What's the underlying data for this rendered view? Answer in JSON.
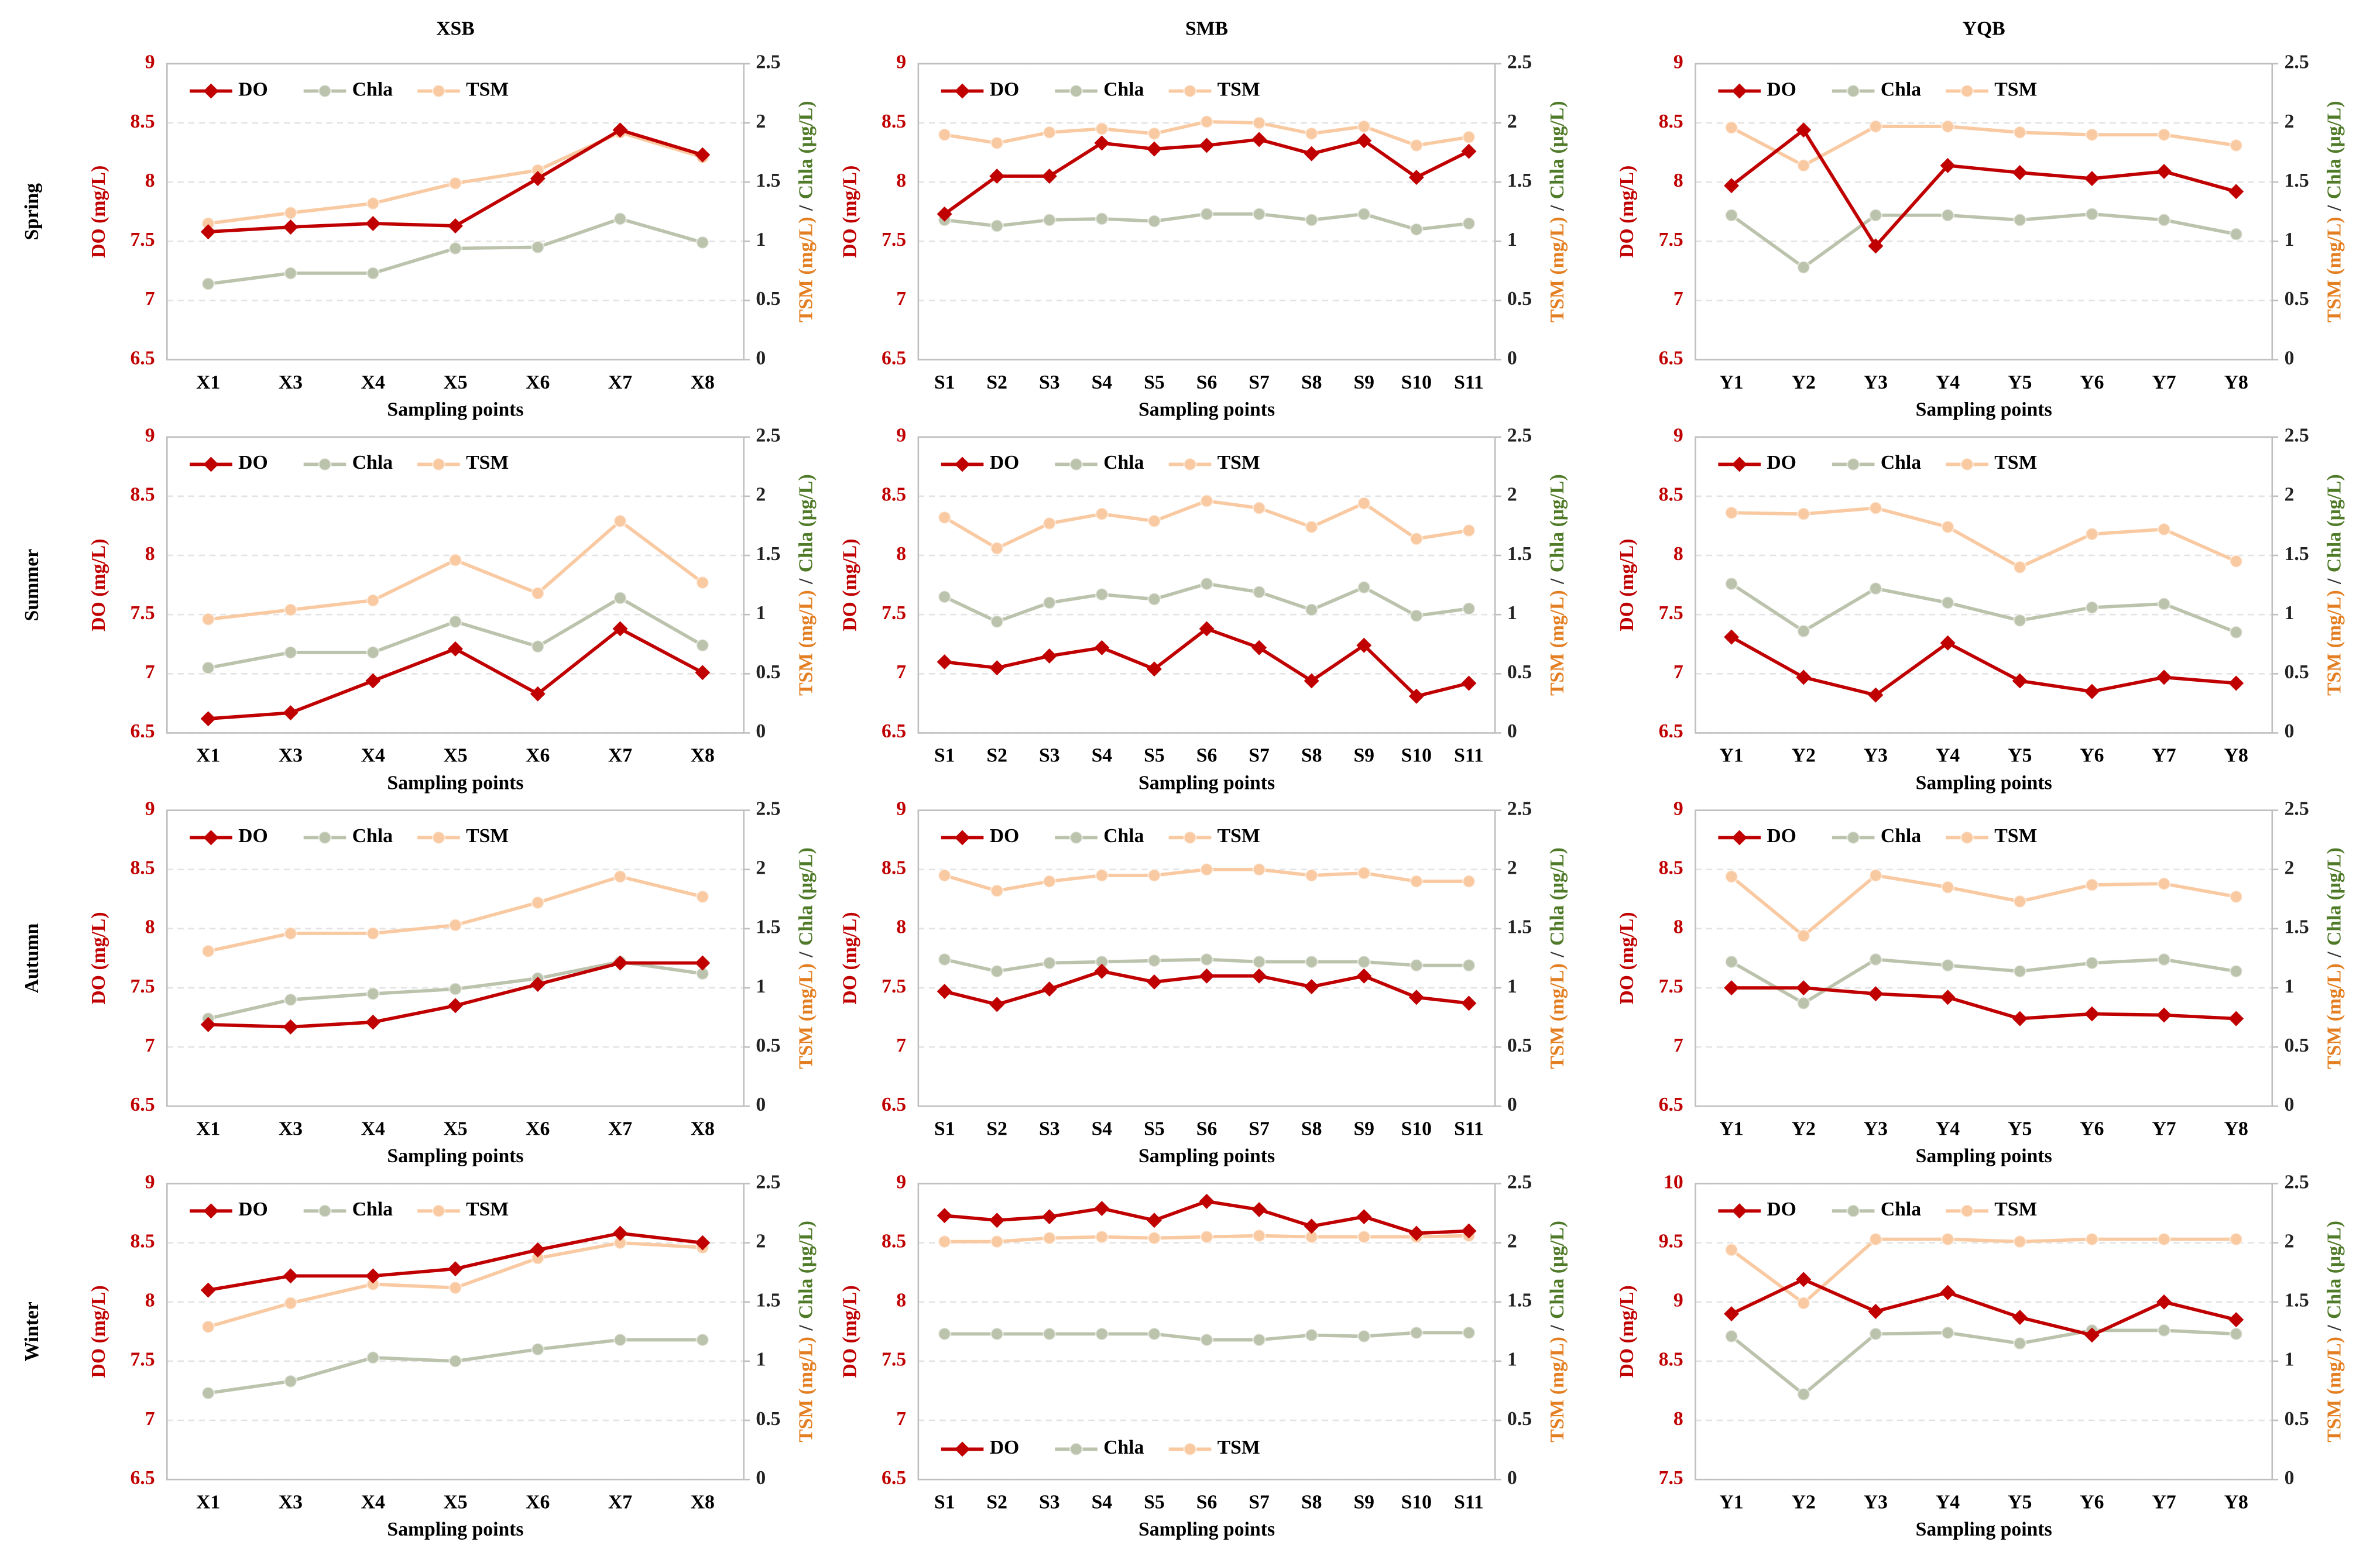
{
  "column_titles": [
    "XSB",
    "SMB",
    "YQB"
  ],
  "row_titles": [
    "Spring",
    "Summer",
    "Autumn",
    "Winter"
  ],
  "chart_data": [
    {
      "type": "line",
      "categories": [
        "X1",
        "X3",
        "X4",
        "X5",
        "X6",
        "X7",
        "X8"
      ],
      "x_label": "Sampling points",
      "y_label": "DO (mg/L)",
      "y2_label": [
        "TSM (mg/L)",
        "/",
        "Chla (μg/L)"
      ],
      "ylim": [
        6.5,
        9
      ],
      "yticks": [
        6.5,
        7,
        7.5,
        8,
        8.5,
        9
      ],
      "y2lim": [
        0,
        2.5
      ],
      "y2ticks": [
        0,
        0.5,
        1,
        1.5,
        2,
        2.5
      ],
      "grid": true,
      "legend": "upper left",
      "series": [
        {
          "name": "DO",
          "color": "#c00000",
          "marker": "diamond",
          "values": [
            7.58,
            7.62,
            7.65,
            7.63,
            8.03,
            8.44,
            8.23
          ]
        },
        {
          "name": "Chla",
          "color": "#bcc3ad",
          "marker": "circle",
          "axis": "y2",
          "values": [
            0.64,
            0.73,
            0.73,
            0.94,
            0.95,
            1.19,
            0.99
          ]
        },
        {
          "name": "TSM",
          "color": "#f9c9a1",
          "marker": "circle",
          "axis": "y2",
          "values": [
            1.15,
            1.24,
            1.32,
            1.49,
            1.6,
            1.92,
            1.71
          ]
        }
      ]
    },
    {
      "type": "line",
      "categories": [
        "S1",
        "S2",
        "S3",
        "S4",
        "S5",
        "S6",
        "S7",
        "S8",
        "S9",
        "S10",
        "S11"
      ],
      "x_label": "Sampling points",
      "y_label": "DO (mg/L)",
      "y2_label": [
        "TSM (mg/L)",
        "/",
        "Chla (μg/L)"
      ],
      "ylim": [
        6.5,
        9
      ],
      "yticks": [
        6.5,
        7,
        7.5,
        8,
        8.5,
        9
      ],
      "y2lim": [
        0,
        2.5
      ],
      "y2ticks": [
        0,
        0.5,
        1,
        1.5,
        2,
        2.5
      ],
      "grid": true,
      "legend": "upper left",
      "series": [
        {
          "name": "DO",
          "color": "#c00000",
          "marker": "diamond",
          "values": [
            7.73,
            8.05,
            8.05,
            8.33,
            8.28,
            8.31,
            8.36,
            8.24,
            8.35,
            8.04,
            8.26
          ]
        },
        {
          "name": "Chla",
          "color": "#bcc3ad",
          "marker": "circle",
          "axis": "y2",
          "values": [
            1.18,
            1.13,
            1.18,
            1.19,
            1.17,
            1.23,
            1.23,
            1.18,
            1.23,
            1.1,
            1.15
          ]
        },
        {
          "name": "TSM",
          "color": "#f9c9a1",
          "marker": "circle",
          "axis": "y2",
          "values": [
            1.9,
            1.83,
            1.92,
            1.95,
            1.91,
            2.01,
            2.0,
            1.91,
            1.97,
            1.81,
            1.88
          ]
        }
      ]
    },
    {
      "type": "line",
      "categories": [
        "Y1",
        "Y2",
        "Y3",
        "Y4",
        "Y5",
        "Y6",
        "Y7",
        "Y8"
      ],
      "x_label": "Sampling points",
      "y_label": "DO (mg/L)",
      "y2_label": [
        "TSM (mg/L)",
        "/",
        "Chla (μg/L)"
      ],
      "ylim": [
        6.5,
        9
      ],
      "yticks": [
        6.5,
        7,
        7.5,
        8,
        8.5,
        9
      ],
      "y2lim": [
        0,
        2.5
      ],
      "y2ticks": [
        0,
        0.5,
        1,
        1.5,
        2,
        2.5
      ],
      "grid": true,
      "legend": "upper left",
      "series": [
        {
          "name": "DO",
          "color": "#c00000",
          "marker": "diamond",
          "values": [
            7.97,
            8.44,
            7.46,
            8.14,
            8.08,
            8.03,
            8.09,
            7.92
          ]
        },
        {
          "name": "Chla",
          "color": "#bcc3ad",
          "marker": "circle",
          "axis": "y2",
          "values": [
            1.22,
            0.78,
            1.22,
            1.22,
            1.18,
            1.23,
            1.18,
            1.06
          ]
        },
        {
          "name": "TSM",
          "color": "#f9c9a1",
          "marker": "circle",
          "axis": "y2",
          "values": [
            1.96,
            1.64,
            1.97,
            1.97,
            1.92,
            1.9,
            1.9,
            1.81
          ]
        }
      ]
    },
    {
      "type": "line",
      "categories": [
        "X1",
        "X3",
        "X4",
        "X5",
        "X6",
        "X7",
        "X8"
      ],
      "x_label": "Sampling points",
      "y_label": "DO (mg/L)",
      "y2_label": [
        "TSM (mg/L)",
        "/",
        "Chla (μg/L)"
      ],
      "ylim": [
        6.5,
        9
      ],
      "yticks": [
        6.5,
        7,
        7.5,
        8,
        8.5,
        9
      ],
      "y2lim": [
        0,
        2.5
      ],
      "y2ticks": [
        0,
        0.5,
        1,
        1.5,
        2,
        2.5
      ],
      "grid": true,
      "legend": "upper left",
      "series": [
        {
          "name": "DO",
          "color": "#c00000",
          "marker": "diamond",
          "values": [
            6.62,
            6.67,
            6.94,
            7.21,
            6.83,
            7.38,
            7.01
          ]
        },
        {
          "name": "Chla",
          "color": "#bcc3ad",
          "marker": "circle",
          "axis": "y2",
          "values": [
            0.55,
            0.68,
            0.68,
            0.94,
            0.73,
            1.14,
            0.74
          ]
        },
        {
          "name": "TSM",
          "color": "#f9c9a1",
          "marker": "circle",
          "axis": "y2",
          "values": [
            0.96,
            1.04,
            1.12,
            1.46,
            1.18,
            1.79,
            1.27
          ]
        }
      ]
    },
    {
      "type": "line",
      "categories": [
        "S1",
        "S2",
        "S3",
        "S4",
        "S5",
        "S6",
        "S7",
        "S8",
        "S9",
        "S10",
        "S11"
      ],
      "x_label": "Sampling points",
      "y_label": "DO (mg/L)",
      "y2_label": [
        "TSM (mg/L)",
        "/",
        "Chla (μg/L)"
      ],
      "ylim": [
        6.5,
        9
      ],
      "yticks": [
        6.5,
        7,
        7.5,
        8,
        8.5,
        9
      ],
      "y2lim": [
        0,
        2.5
      ],
      "y2ticks": [
        0,
        0.5,
        1,
        1.5,
        2,
        2.5
      ],
      "grid": true,
      "legend": "upper left",
      "series": [
        {
          "name": "DO",
          "color": "#c00000",
          "marker": "diamond",
          "values": [
            7.1,
            7.05,
            7.15,
            7.22,
            7.04,
            7.38,
            7.22,
            6.94,
            7.24,
            6.81,
            6.92
          ]
        },
        {
          "name": "Chla",
          "color": "#bcc3ad",
          "marker": "circle",
          "axis": "y2",
          "values": [
            1.15,
            0.94,
            1.1,
            1.17,
            1.13,
            1.26,
            1.19,
            1.04,
            1.23,
            0.99,
            1.05
          ]
        },
        {
          "name": "TSM",
          "color": "#f9c9a1",
          "marker": "circle",
          "axis": "y2",
          "values": [
            1.82,
            1.56,
            1.77,
            1.85,
            1.79,
            1.96,
            1.9,
            1.74,
            1.94,
            1.64,
            1.71
          ]
        }
      ]
    },
    {
      "type": "line",
      "categories": [
        "Y1",
        "Y2",
        "Y3",
        "Y4",
        "Y5",
        "Y6",
        "Y7",
        "Y8"
      ],
      "x_label": "Sampling points",
      "y_label": "DO (mg/L)",
      "y2_label": [
        "TSM (mg/L)",
        "/",
        "Chla (μg/L)"
      ],
      "ylim": [
        6.5,
        9
      ],
      "yticks": [
        6.5,
        7,
        7.5,
        8,
        8.5,
        9
      ],
      "y2lim": [
        0,
        2.5
      ],
      "y2ticks": [
        0,
        0.5,
        1,
        1.5,
        2,
        2.5
      ],
      "grid": true,
      "legend": "upper left",
      "series": [
        {
          "name": "DO",
          "color": "#c00000",
          "marker": "diamond",
          "values": [
            7.31,
            6.97,
            6.82,
            7.26,
            6.94,
            6.85,
            6.97,
            6.92
          ]
        },
        {
          "name": "Chla",
          "color": "#bcc3ad",
          "marker": "circle",
          "axis": "y2",
          "values": [
            1.26,
            0.86,
            1.22,
            1.1,
            0.95,
            1.06,
            1.09,
            0.85
          ]
        },
        {
          "name": "TSM",
          "color": "#f9c9a1",
          "marker": "circle",
          "axis": "y2",
          "values": [
            1.86,
            1.85,
            1.9,
            1.74,
            1.4,
            1.68,
            1.72,
            1.45
          ]
        }
      ]
    },
    {
      "type": "line",
      "categories": [
        "X1",
        "X3",
        "X4",
        "X5",
        "X6",
        "X7",
        "X8"
      ],
      "x_label": "Sampling points",
      "y_label": "DO (mg/L)",
      "y2_label": [
        "TSM (mg/L)",
        "/",
        "Chla (μg/L)"
      ],
      "ylim": [
        6.5,
        9
      ],
      "yticks": [
        6.5,
        7,
        7.5,
        8,
        8.5,
        9
      ],
      "y2lim": [
        0,
        2.5
      ],
      "y2ticks": [
        0,
        0.5,
        1,
        1.5,
        2,
        2.5
      ],
      "grid": true,
      "legend": "upper left",
      "series": [
        {
          "name": "DO",
          "color": "#c00000",
          "marker": "diamond",
          "values": [
            7.19,
            7.17,
            7.21,
            7.35,
            7.53,
            7.71,
            7.71
          ]
        },
        {
          "name": "Chla",
          "color": "#bcc3ad",
          "marker": "circle",
          "axis": "y2",
          "values": [
            0.74,
            0.9,
            0.95,
            0.99,
            1.08,
            1.22,
            1.12
          ]
        },
        {
          "name": "TSM",
          "color": "#f9c9a1",
          "marker": "circle",
          "axis": "y2",
          "values": [
            1.31,
            1.46,
            1.46,
            1.53,
            1.72,
            1.94,
            1.77
          ]
        }
      ]
    },
    {
      "type": "line",
      "categories": [
        "S1",
        "S2",
        "S3",
        "S4",
        "S5",
        "S6",
        "S7",
        "S8",
        "S9",
        "S10",
        "S11"
      ],
      "x_label": "Sampling points",
      "y_label": "DO (mg/L)",
      "y2_label": [
        "TSM (mg/L)",
        "/",
        "Chla (μg/L)"
      ],
      "ylim": [
        6.5,
        9
      ],
      "yticks": [
        6.5,
        7,
        7.5,
        8,
        8.5,
        9
      ],
      "y2lim": [
        0,
        2.5
      ],
      "y2ticks": [
        0,
        0.5,
        1,
        1.5,
        2,
        2.5
      ],
      "grid": true,
      "legend": "upper left",
      "series": [
        {
          "name": "DO",
          "color": "#c00000",
          "marker": "diamond",
          "values": [
            7.47,
            7.36,
            7.49,
            7.64,
            7.55,
            7.6,
            7.6,
            7.51,
            7.6,
            7.42,
            7.37
          ]
        },
        {
          "name": "Chla",
          "color": "#bcc3ad",
          "marker": "circle",
          "axis": "y2",
          "values": [
            1.24,
            1.14,
            1.21,
            1.22,
            1.23,
            1.24,
            1.22,
            1.22,
            1.22,
            1.19,
            1.19
          ]
        },
        {
          "name": "TSM",
          "color": "#f9c9a1",
          "marker": "circle",
          "axis": "y2",
          "values": [
            1.95,
            1.82,
            1.9,
            1.95,
            1.95,
            2.0,
            2.0,
            1.95,
            1.97,
            1.9,
            1.9
          ]
        }
      ]
    },
    {
      "type": "line",
      "categories": [
        "Y1",
        "Y2",
        "Y3",
        "Y4",
        "Y5",
        "Y6",
        "Y7",
        "Y8"
      ],
      "x_label": "Sampling points",
      "y_label": "DO (mg/L)",
      "y2_label": [
        "TSM (mg/L)",
        "/",
        "Chla (μg/L)"
      ],
      "ylim": [
        6.5,
        9
      ],
      "yticks": [
        6.5,
        7,
        7.5,
        8,
        8.5,
        9
      ],
      "y2lim": [
        0,
        2.5
      ],
      "y2ticks": [
        0,
        0.5,
        1,
        1.5,
        2,
        2.5
      ],
      "grid": true,
      "legend": "upper left",
      "series": [
        {
          "name": "DO",
          "color": "#c00000",
          "marker": "diamond",
          "values": [
            7.5,
            7.5,
            7.45,
            7.42,
            7.24,
            7.28,
            7.27,
            7.24
          ]
        },
        {
          "name": "Chla",
          "color": "#bcc3ad",
          "marker": "circle",
          "axis": "y2",
          "values": [
            1.22,
            0.87,
            1.24,
            1.19,
            1.14,
            1.21,
            1.24,
            1.14
          ]
        },
        {
          "name": "TSM",
          "color": "#f9c9a1",
          "marker": "circle",
          "axis": "y2",
          "values": [
            1.94,
            1.44,
            1.95,
            1.85,
            1.73,
            1.87,
            1.88,
            1.77
          ]
        }
      ]
    },
    {
      "type": "line",
      "categories": [
        "X1",
        "X3",
        "X4",
        "X5",
        "X6",
        "X7",
        "X8"
      ],
      "x_label": "Sampling points",
      "y_label": "DO (mg/L)",
      "y2_label": [
        "TSM (mg/L)",
        "/",
        "Chla (μg/L)"
      ],
      "ylim": [
        6.5,
        9
      ],
      "yticks": [
        6.5,
        7,
        7.5,
        8,
        8.5,
        9
      ],
      "y2lim": [
        0,
        2.5
      ],
      "y2ticks": [
        0,
        0.5,
        1,
        1.5,
        2,
        2.5
      ],
      "grid": true,
      "legend": "upper left",
      "series": [
        {
          "name": "DO",
          "color": "#c00000",
          "marker": "diamond",
          "values": [
            8.1,
            8.22,
            8.22,
            8.28,
            8.44,
            8.58,
            8.5
          ]
        },
        {
          "name": "Chla",
          "color": "#bcc3ad",
          "marker": "circle",
          "axis": "y2",
          "values": [
            0.73,
            0.83,
            1.03,
            1.0,
            1.1,
            1.18,
            1.18
          ]
        },
        {
          "name": "TSM",
          "color": "#f9c9a1",
          "marker": "circle",
          "axis": "y2",
          "values": [
            1.29,
            1.49,
            1.65,
            1.62,
            1.87,
            2.0,
            1.96
          ]
        }
      ]
    },
    {
      "type": "line",
      "categories": [
        "S1",
        "S2",
        "S3",
        "S4",
        "S5",
        "S6",
        "S7",
        "S8",
        "S9",
        "S10",
        "S11"
      ],
      "x_label": "Sampling points",
      "y_label": "DO (mg/L)",
      "y2_label": [
        "TSM (mg/L)",
        "/",
        "Chla (μg/L)"
      ],
      "ylim": [
        6.5,
        9
      ],
      "yticks": [
        6.5,
        7,
        7.5,
        8,
        8.5,
        9
      ],
      "y2lim": [
        0,
        2.5
      ],
      "y2ticks": [
        0,
        0.5,
        1,
        1.5,
        2,
        2.5
      ],
      "grid": true,
      "legend": "lower left",
      "series": [
        {
          "name": "DO",
          "color": "#c00000",
          "marker": "diamond",
          "values": [
            8.73,
            8.69,
            8.72,
            8.79,
            8.69,
            8.85,
            8.78,
            8.64,
            8.72,
            8.58,
            8.6
          ]
        },
        {
          "name": "Chla",
          "color": "#bcc3ad",
          "marker": "circle",
          "axis": "y2",
          "values": [
            1.23,
            1.23,
            1.23,
            1.23,
            1.23,
            1.18,
            1.18,
            1.22,
            1.21,
            1.24,
            1.24
          ]
        },
        {
          "name": "TSM",
          "color": "#f9c9a1",
          "marker": "circle",
          "axis": "y2",
          "values": [
            2.01,
            2.01,
            2.04,
            2.05,
            2.04,
            2.05,
            2.06,
            2.05,
            2.05,
            2.05,
            2.06
          ]
        }
      ]
    },
    {
      "type": "line",
      "categories": [
        "Y1",
        "Y2",
        "Y3",
        "Y4",
        "Y5",
        "Y6",
        "Y7",
        "Y8"
      ],
      "x_label": "Sampling points",
      "y_label": "DO (mg/L)",
      "y2_label": [
        "TSM (mg/L)",
        "/",
        "Chla (μg/L)"
      ],
      "ylim": [
        7.5,
        10
      ],
      "yticks": [
        7.5,
        8,
        8.5,
        9,
        9.5,
        10
      ],
      "y2lim": [
        0,
        2.5
      ],
      "y2ticks": [
        0,
        0.5,
        1,
        1.5,
        2,
        2.5
      ],
      "grid": true,
      "legend": "upper left",
      "series": [
        {
          "name": "DO",
          "color": "#c00000",
          "marker": "diamond",
          "values": [
            8.9,
            9.19,
            8.92,
            9.08,
            8.87,
            8.72,
            9.0,
            8.85
          ]
        },
        {
          "name": "Chla",
          "color": "#bcc3ad",
          "marker": "circle",
          "axis": "y2",
          "values": [
            1.21,
            0.72,
            1.23,
            1.24,
            1.15,
            1.26,
            1.26,
            1.23
          ]
        },
        {
          "name": "TSM",
          "color": "#f9c9a1",
          "marker": "circle",
          "axis": "y2",
          "values": [
            1.94,
            1.49,
            2.03,
            2.03,
            2.01,
            2.03,
            2.03,
            2.03
          ]
        }
      ]
    }
  ]
}
